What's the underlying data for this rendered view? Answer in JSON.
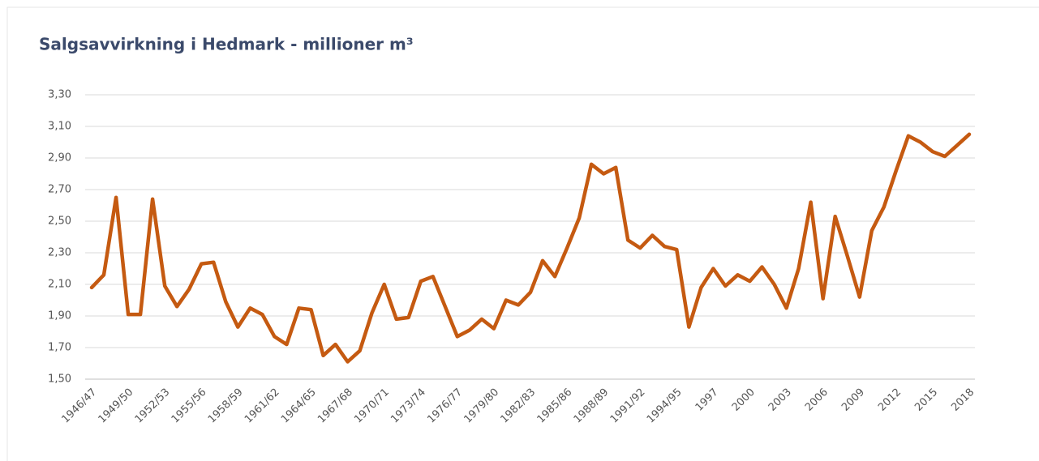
{
  "chart_data": {
    "type": "line",
    "title": "Salgsavvirkning i Hedmark  - millioner m³",
    "categories": [
      "1946/47",
      null,
      null,
      "1949/50",
      null,
      null,
      "1952/53",
      null,
      null,
      "1955/56",
      null,
      null,
      "1958/59",
      null,
      null,
      "1961/62",
      null,
      null,
      "1964/65",
      null,
      null,
      "1967/68",
      null,
      null,
      "1970/71",
      null,
      null,
      "1973/74",
      null,
      null,
      "1976/77",
      null,
      null,
      "1979/80",
      null,
      null,
      "1982/83",
      null,
      null,
      "1985/86",
      null,
      null,
      "1988/89",
      null,
      null,
      "1991/92",
      null,
      null,
      "1994/95",
      null,
      null,
      "1997",
      null,
      null,
      "2000",
      null,
      null,
      "2003",
      null,
      null,
      "2006",
      null,
      null,
      "2009",
      null,
      null,
      "2012",
      null,
      null,
      "2015",
      null,
      null,
      "2018"
    ],
    "series": [
      {
        "name": "Salgsavvirkning",
        "color": "#c55a11",
        "values": [
          2.08,
          2.16,
          2.65,
          1.91,
          1.91,
          2.64,
          2.09,
          1.96,
          2.07,
          2.23,
          2.24,
          1.99,
          1.83,
          1.95,
          1.91,
          1.77,
          1.72,
          1.95,
          1.94,
          1.65,
          1.72,
          1.61,
          1.68,
          1.92,
          2.1,
          1.88,
          1.89,
          2.12,
          2.15,
          1.96,
          1.77,
          1.81,
          1.88,
          1.82,
          2.0,
          1.97,
          2.05,
          2.25,
          2.15,
          2.33,
          2.52,
          2.86,
          2.8,
          2.84,
          2.38,
          2.33,
          2.41,
          2.34,
          2.32,
          1.83,
          2.08,
          2.2,
          2.09,
          2.16,
          2.12,
          2.21,
          2.1,
          1.95,
          2.2,
          2.62,
          2.01,
          2.53,
          2.28,
          2.02,
          2.44,
          2.59,
          2.82,
          3.04,
          3.0,
          2.94,
          2.91,
          2.98,
          3.05
        ]
      }
    ],
    "ylim": [
      1.5,
      3.3
    ],
    "yticks": [
      {
        "value": 1.5,
        "label": "1,50"
      },
      {
        "value": 1.7,
        "label": "1,70"
      },
      {
        "value": 1.9,
        "label": "1,90"
      },
      {
        "value": 2.1,
        "label": "2,10"
      },
      {
        "value": 2.3,
        "label": "2,30"
      },
      {
        "value": 2.5,
        "label": "2,50"
      },
      {
        "value": 2.7,
        "label": "2,70"
      },
      {
        "value": 2.9,
        "label": "2,90"
      },
      {
        "value": 3.1,
        "label": "3,10"
      },
      {
        "value": 3.3,
        "label": "3,30"
      }
    ],
    "grid": true
  }
}
